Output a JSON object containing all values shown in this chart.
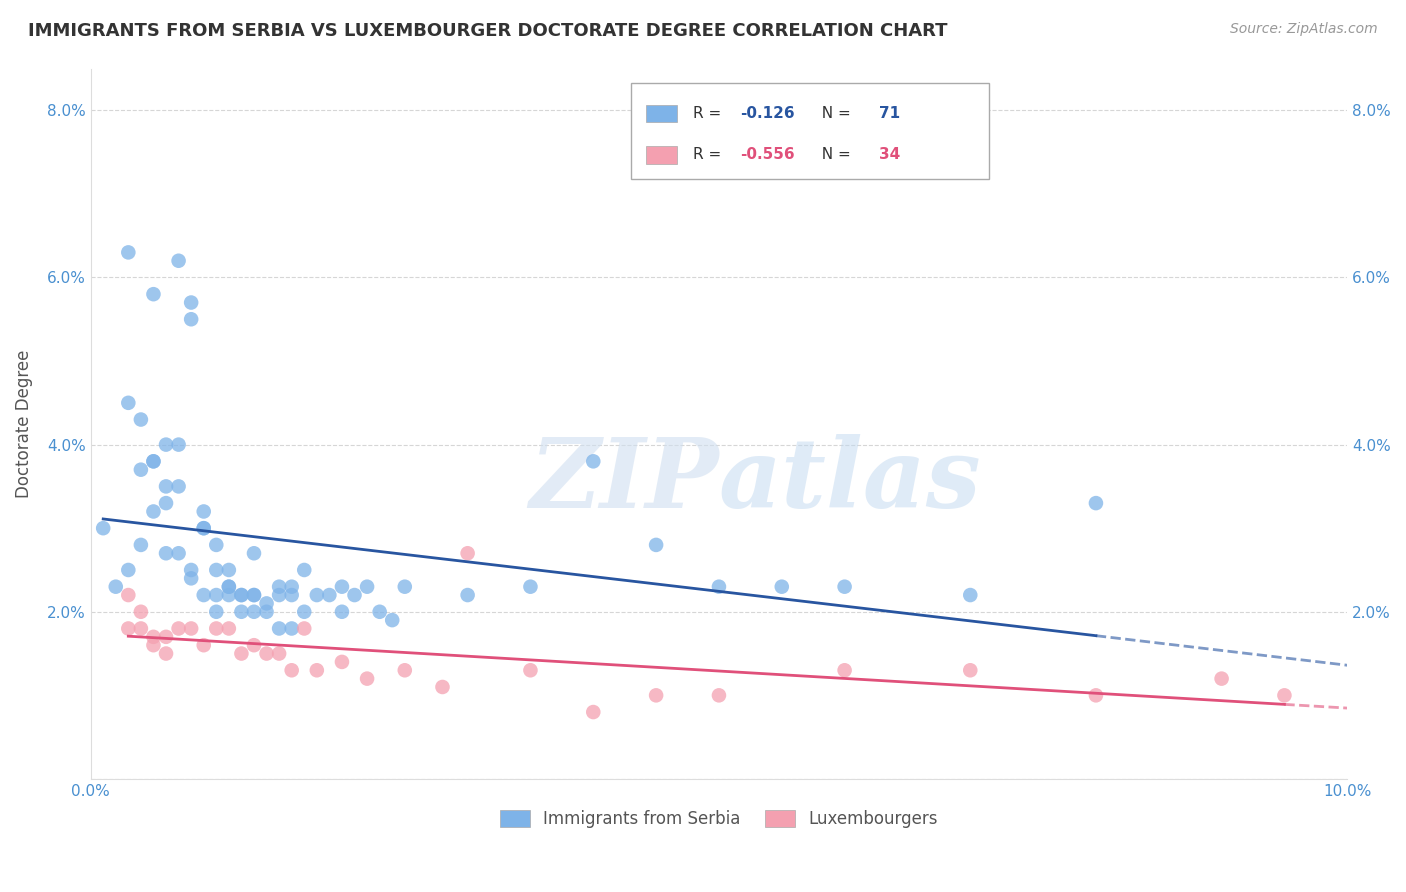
{
  "title": "IMMIGRANTS FROM SERBIA VS LUXEMBOURGER DOCTORATE DEGREE CORRELATION CHART",
  "source": "Source: ZipAtlas.com",
  "ylabel": "Doctorate Degree",
  "xlim": [
    0.0,
    0.1
  ],
  "ylim": [
    0.0,
    0.085
  ],
  "yticks": [
    0.0,
    0.02,
    0.04,
    0.06,
    0.08
  ],
  "ytick_labels": [
    "",
    "2.0%",
    "4.0%",
    "6.0%",
    "8.0%"
  ],
  "xticks": [
    0.0,
    0.02,
    0.04,
    0.06,
    0.08,
    0.1
  ],
  "xtick_labels": [
    "0.0%",
    "",
    "",
    "",
    "",
    "10.0%"
  ],
  "legend_labels": [
    "Immigrants from Serbia",
    "Luxembourgers"
  ],
  "serbia_color": "#7eb3e8",
  "luxembourg_color": "#f4a0b0",
  "serbia_line_color": "#2855a0",
  "luxembourg_line_color": "#e0507a",
  "serbia_R": "-0.126",
  "serbia_N": "71",
  "luxembourg_R": "-0.556",
  "luxembourg_N": "34",
  "serbia_points_x": [
    0.001,
    0.002,
    0.003,
    0.004,
    0.005,
    0.006,
    0.007,
    0.008,
    0.009,
    0.01,
    0.01,
    0.011,
    0.011,
    0.012,
    0.013,
    0.013,
    0.014,
    0.015,
    0.015,
    0.016,
    0.016,
    0.017,
    0.018,
    0.019,
    0.02,
    0.02,
    0.021,
    0.022,
    0.023,
    0.024,
    0.005,
    0.006,
    0.007,
    0.008,
    0.009,
    0.01,
    0.011,
    0.012,
    0.013,
    0.014,
    0.015,
    0.016,
    0.017,
    0.003,
    0.004,
    0.005,
    0.006,
    0.007,
    0.008,
    0.009,
    0.025,
    0.03,
    0.035,
    0.04,
    0.05,
    0.06,
    0.07,
    0.08,
    0.045,
    0.055,
    0.003,
    0.004,
    0.005,
    0.006,
    0.007,
    0.008,
    0.009,
    0.01,
    0.011,
    0.012,
    0.013
  ],
  "serbia_points_y": [
    0.03,
    0.023,
    0.025,
    0.028,
    0.038,
    0.027,
    0.027,
    0.024,
    0.022,
    0.025,
    0.02,
    0.022,
    0.025,
    0.02,
    0.022,
    0.027,
    0.021,
    0.018,
    0.022,
    0.018,
    0.022,
    0.025,
    0.022,
    0.022,
    0.023,
    0.02,
    0.022,
    0.023,
    0.02,
    0.019,
    0.058,
    0.04,
    0.04,
    0.055,
    0.032,
    0.028,
    0.023,
    0.022,
    0.02,
    0.02,
    0.023,
    0.023,
    0.02,
    0.063,
    0.043,
    0.038,
    0.035,
    0.035,
    0.025,
    0.03,
    0.023,
    0.022,
    0.023,
    0.038,
    0.023,
    0.023,
    0.022,
    0.033,
    0.028,
    0.023,
    0.045,
    0.037,
    0.032,
    0.033,
    0.062,
    0.057,
    0.03,
    0.022,
    0.023,
    0.022,
    0.022
  ],
  "luxembourg_points_x": [
    0.003,
    0.004,
    0.005,
    0.006,
    0.007,
    0.008,
    0.009,
    0.01,
    0.011,
    0.012,
    0.013,
    0.014,
    0.015,
    0.016,
    0.017,
    0.018,
    0.003,
    0.004,
    0.005,
    0.006,
    0.02,
    0.022,
    0.025,
    0.028,
    0.03,
    0.035,
    0.04,
    0.045,
    0.05,
    0.06,
    0.07,
    0.08,
    0.09,
    0.095
  ],
  "luxembourg_points_y": [
    0.018,
    0.018,
    0.016,
    0.017,
    0.018,
    0.018,
    0.016,
    0.018,
    0.018,
    0.015,
    0.016,
    0.015,
    0.015,
    0.013,
    0.018,
    0.013,
    0.022,
    0.02,
    0.017,
    0.015,
    0.014,
    0.012,
    0.013,
    0.011,
    0.027,
    0.013,
    0.008,
    0.01,
    0.01,
    0.013,
    0.013,
    0.01,
    0.012,
    0.01
  ],
  "background_color": "#ffffff",
  "grid_color": "#cccccc",
  "watermark_zip": "ZIP",
  "watermark_atlas": "atlas",
  "axis_label_color": "#4a90d0",
  "title_color": "#333333",
  "title_fontsize": 13,
  "source_color": "#999999"
}
